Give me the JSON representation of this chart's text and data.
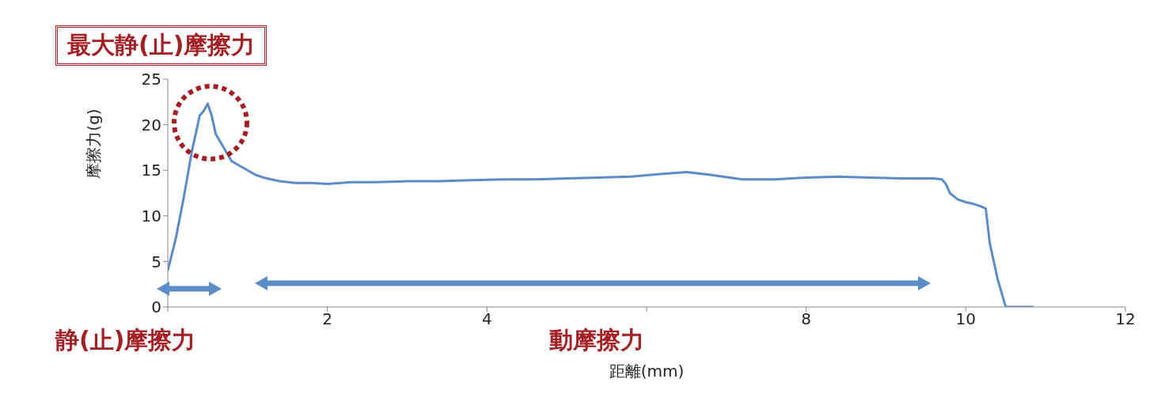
{
  "chart_data": {
    "type": "line",
    "xlabel": "距離(mm)",
    "ylabel": "摩擦力(g)",
    "annotations": [
      "最大静(止)摩擦力",
      "静(止)摩擦力",
      "動摩擦力"
    ],
    "x": [
      0,
      0.1,
      0.2,
      0.3,
      0.4,
      0.45,
      0.5,
      0.55,
      0.6,
      0.7,
      0.8,
      0.9,
      1.0,
      1.1,
      1.2,
      1.4,
      1.6,
      1.8,
      2.0,
      2.3,
      2.6,
      3.0,
      3.4,
      3.8,
      4.2,
      4.6,
      5.0,
      5.4,
      5.8,
      6.2,
      6.5,
      6.8,
      7.2,
      7.6,
      8.0,
      8.4,
      8.8,
      9.2,
      9.6,
      9.7,
      9.75,
      9.8,
      9.9,
      10.0,
      10.1,
      10.2,
      10.25,
      10.3,
      10.4,
      10.5,
      10.6,
      10.85
    ],
    "series": [
      {
        "color": "#5b8cc8",
        "values": [
          4,
          7.5,
          12,
          17,
          21,
          21.5,
          22.3,
          21,
          19,
          17.5,
          16,
          15.5,
          15,
          14.5,
          14.2,
          13.8,
          13.6,
          13.6,
          13.5,
          13.7,
          13.7,
          13.8,
          13.8,
          13.9,
          14,
          14,
          14.1,
          14.2,
          14.3,
          14.6,
          14.8,
          14.5,
          14,
          14,
          14.2,
          14.3,
          14.2,
          14.1,
          14.1,
          14,
          13.5,
          12.5,
          11.8,
          11.5,
          11.3,
          11,
          10.8,
          7,
          3,
          0,
          0,
          0
        ]
      }
    ],
    "xlim": [
      0,
      12
    ],
    "xticks": [
      {
        "value": 0,
        "label": null
      },
      2,
      4,
      {
        "value": 6,
        "label": null
      },
      8,
      10,
      12
    ],
    "ylim": [
      0,
      25
    ],
    "yticks": [
      0,
      5,
      10,
      15,
      20,
      25
    ],
    "grid": false,
    "legend": false,
    "marker": "none",
    "line_style": "solid"
  }
}
